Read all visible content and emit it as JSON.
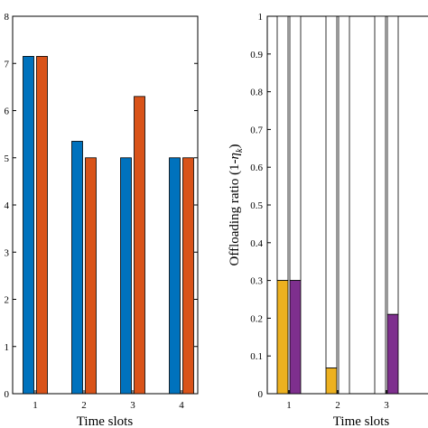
{
  "chart_data": [
    {
      "type": "bar",
      "xlabel": "Time slots",
      "ylabel": "",
      "categories": [
        "1",
        "2",
        "3",
        "4"
      ],
      "yticks": [
        "0",
        "1",
        "2",
        "3",
        "4",
        "5",
        "6",
        "7",
        "8"
      ],
      "ylim": [
        0,
        8
      ],
      "grid": false,
      "series": [
        {
          "color": "#0072BD",
          "values": [
            7.15,
            5.35,
            5.0,
            5.0
          ]
        },
        {
          "color": "#D95319",
          "values": [
            7.15,
            5.0,
            6.3,
            5.0
          ]
        }
      ]
    },
    {
      "type": "bar",
      "stacked": true,
      "xlabel": "Time slots",
      "ylabel": "Offloading ratio (1-η_k)",
      "ylabel_main": "Offloading ratio (1-",
      "ylabel_eta": "η",
      "ylabel_sub": "k",
      "ylabel_close": ")",
      "categories": [
        "1",
        "2",
        "3"
      ],
      "yticks": [
        "0",
        "0.1",
        "0.2",
        "0.3",
        "0.4",
        "0.5",
        "0.6",
        "0.7",
        "0.8",
        "0.9",
        "1"
      ],
      "ylim": [
        0,
        1
      ],
      "grid": false,
      "series": [
        {
          "color": "#EDB120",
          "values": [
            0.3,
            0.068,
            0.0
          ]
        },
        {
          "color": "#7E2F8E",
          "values": [
            0.3,
            0.0,
            0.21
          ]
        }
      ],
      "remainder_color": "#FFFFFF"
    }
  ]
}
